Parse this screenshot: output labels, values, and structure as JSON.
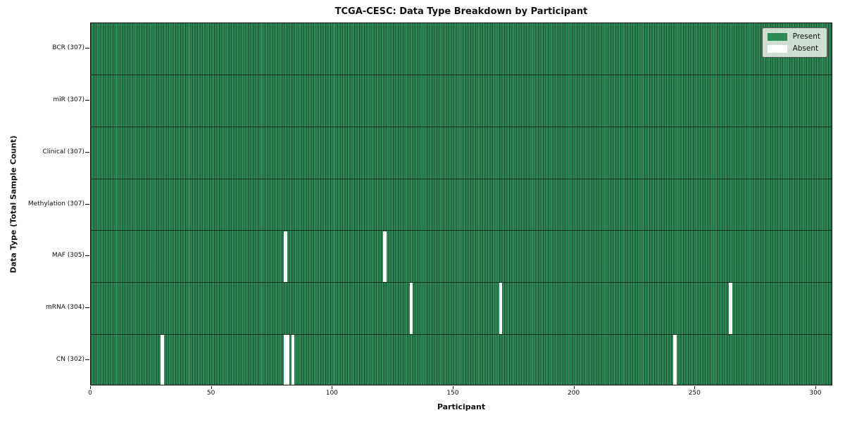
{
  "chart_data": {
    "type": "heatmap",
    "title": "TCGA-CESC: Data Type Breakdown by Participant",
    "xlabel": "Participant",
    "ylabel": "Data Type (Total Sample Count)",
    "x_ticks": [
      0,
      50,
      100,
      150,
      200,
      250,
      300
    ],
    "x_range": [
      0,
      307
    ],
    "n_participants": 307,
    "grid": false,
    "legend_position": "upper right",
    "rows": [
      {
        "data_type": "BCR",
        "label": "BCR (307)",
        "present_count": 307,
        "absent_participants": []
      },
      {
        "data_type": "miR",
        "label": "miR (307)",
        "present_count": 307,
        "absent_participants": []
      },
      {
        "data_type": "Clinical",
        "label": "Clinical (307)",
        "present_count": 307,
        "absent_participants": []
      },
      {
        "data_type": "Methylation",
        "label": "Methylation (307)",
        "present_count": 307,
        "absent_participants": []
      },
      {
        "data_type": "MAF",
        "label": "MAF (305)",
        "present_count": 305,
        "absent_participants": [
          80,
          121
        ]
      },
      {
        "data_type": "mRNA",
        "label": "mRNA (304)",
        "present_count": 304,
        "absent_participants": [
          132,
          169,
          264
        ]
      },
      {
        "data_type": "CN",
        "label": "CN (302)",
        "present_count": 302,
        "absent_participants": [
          29,
          80,
          81,
          83,
          241
        ]
      }
    ],
    "legend_items": [
      {
        "label": "Present",
        "color": "#2e8b57"
      },
      {
        "label": "Absent",
        "color": "#ffffff"
      }
    ],
    "colors": {
      "present": "#2e8b57",
      "absent": "#ffffff",
      "cell_edge": "#1c4a31",
      "axis": "#111111",
      "legend_bg": "#ebf1eb"
    }
  }
}
